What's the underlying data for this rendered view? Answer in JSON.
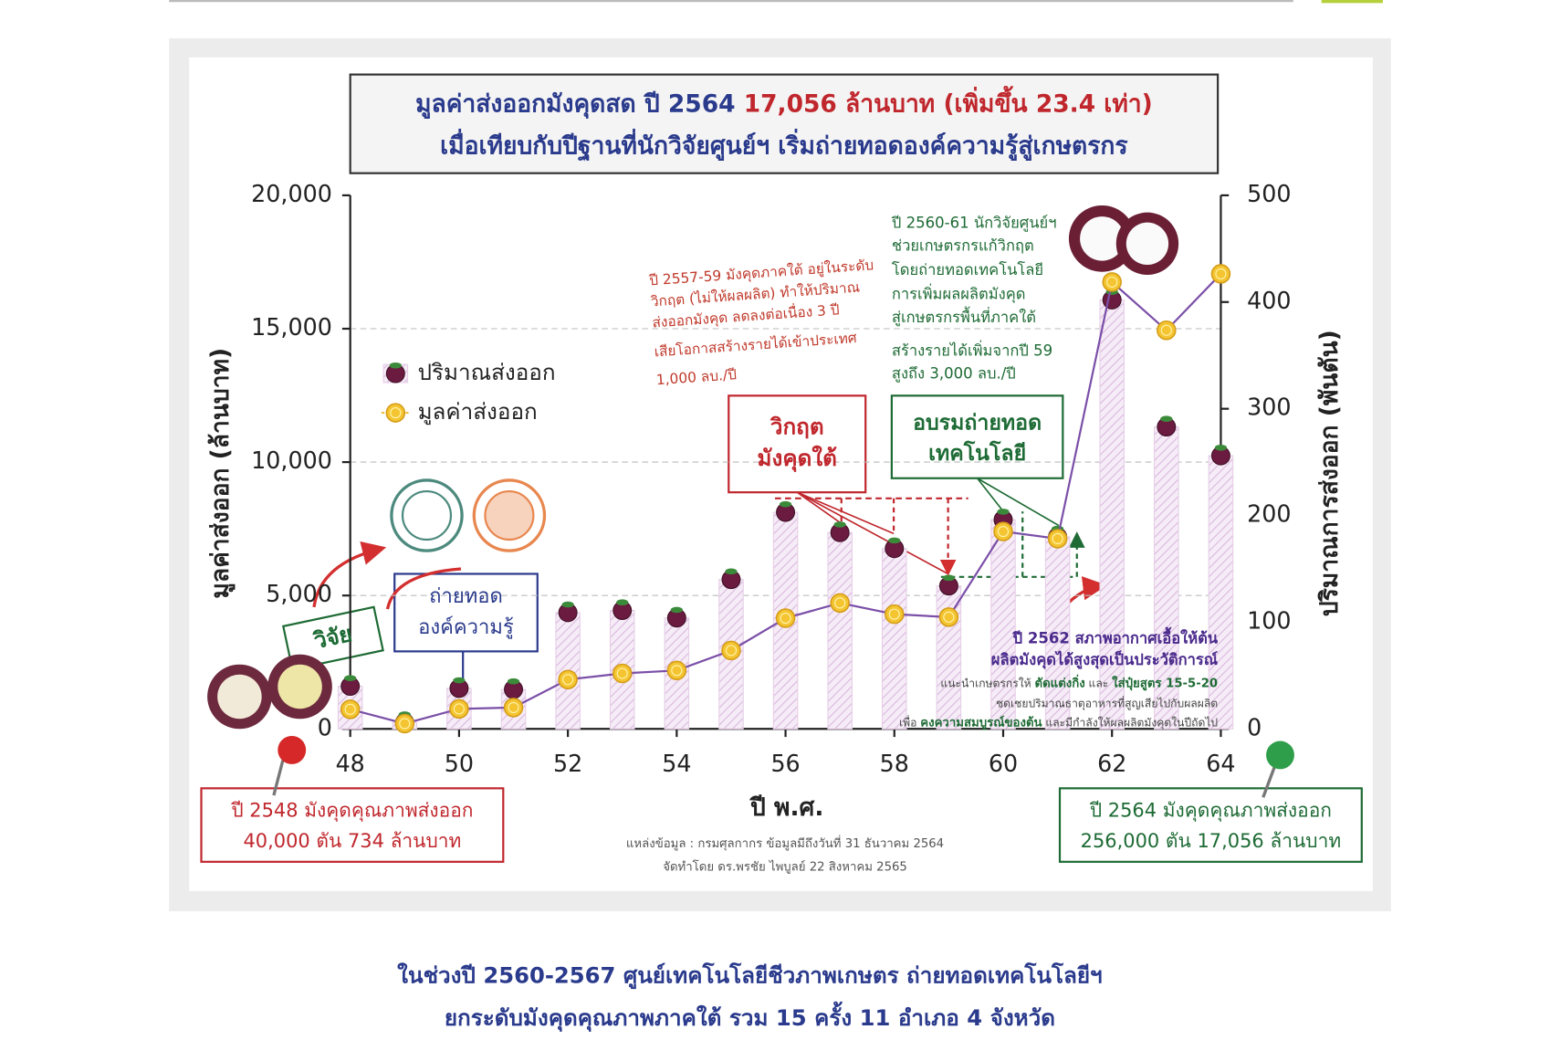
{
  "chart_data": {
    "type": "combo",
    "title": {
      "line1": [
        "มูลค่าส่งออกมังคุดสด ปี 2564 ",
        "17,056 ล้านบาท (เพิ่มขึ้น 23.4 เท่า)"
      ],
      "line2": "เมื่อเทียบกับปีฐานที่นักวิจัยศูนย์ฯ เริ่มถ่ายทอดองค์ความรู้สู่เกษตรกร"
    },
    "xlabel": "ปี พ.ศ.",
    "ylabel": "มูลค่าส่งออก (ล้านบาท)",
    "y2label": "ปริมาณการส่งออก (พันตัน)",
    "x": [
      48,
      49,
      50,
      51,
      52,
      53,
      54,
      55,
      56,
      57,
      58,
      59,
      60,
      61,
      62,
      63,
      64
    ],
    "xlim": [
      48,
      64
    ],
    "xticks": [
      48,
      50,
      52,
      54,
      56,
      58,
      60,
      62,
      64
    ],
    "ylim": [
      0,
      20000
    ],
    "yticks": [
      0,
      {
        "value": 5000,
        "label": "5,000"
      },
      {
        "value": 10000,
        "label": "10,000"
      },
      {
        "value": 15000,
        "label": "15,000"
      },
      {
        "value": 20000,
        "label": "20,000"
      }
    ],
    "y2lim": [
      0,
      500
    ],
    "y2ticks": [
      0,
      100,
      200,
      300,
      400,
      500
    ],
    "grid": true,
    "series": [
      {
        "name": "ปริมาณส่งออก",
        "type": "bar",
        "axis": "y2",
        "color": "#e6cfe8",
        "values": [
          40,
          6,
          38,
          37,
          109,
          111,
          104,
          140,
          203,
          184,
          169,
          134,
          196,
          180,
          402,
          283,
          256
        ]
      },
      {
        "name": "มูลค่าส่งออก",
        "type": "line",
        "color": "#7b4fa8",
        "values": [
          734,
          200,
          750,
          800,
          1850,
          2080,
          2190,
          2940,
          4150,
          4720,
          4300,
          4190,
          7400,
          7130,
          16750,
          14940,
          17056
        ]
      }
    ],
    "annotations": {
      "crisis_note": [
        "ปี 2557-59 มังคุดภาคใต้ อยู่ในระดับ",
        "วิกฤต (ไม่ให้ผลผลิต) ทำให้ปริมาณ",
        "ส่งออกมังคุด ลดลงต่อเนื่อง 3 ปี",
        "เสียโอกาสสร้างรายได้เข้าประเทศ",
        "1,000 ลบ./ปี"
      ],
      "tech_note": [
        "ปี 2560-61 นักวิจัยศูนย์ฯ",
        "ช่วยเกษตรกรแก้วิกฤต",
        "โดยถ่ายทอดเทคโนโลยี",
        "การเพิ่มผลผลิตมังคุด",
        "สู่เกษตรกรพื้นที่ภาคใต้",
        "สร้างรายได้เพิ่มจากปี 59",
        "สูงถึง 3,000 ลบ./ปี"
      ],
      "crisis_box": [
        "วิกฤต",
        "มังคุดใต้"
      ],
      "training_box": [
        "อบรมถ่ายทอด",
        "เทคโนโลยี"
      ],
      "research_box": [
        "วิจัย"
      ],
      "transfer_box": [
        "ถ่ายทอด",
        "องค์ความรู้"
      ],
      "record_note": [
        "ปี 2562 สภาพอากาศเอื้อให้ต้น",
        "ผลิตมังคุดได้สูงสุดเป็นประวัติการณ์"
      ],
      "advice_note": [
        [
          "แนะนำเกษตรกรให้ ",
          "ตัดแต่งกิ่ง",
          " และ ",
          "ใส่ปุ๋ยสูตร 15-5-20"
        ],
        [
          "ชดเชยปริมาณธาตุอาหารที่สูญเสียไปกับผลผลิต"
        ],
        [
          "เพื่อ ",
          "คงความสมบูรณ์ของต้น",
          " และมีกำลังให้ผลผลิตมังคุดในปีถัดไป"
        ]
      ],
      "start_box": [
        "ปี 2548 มังคุดคุณภาพส่งออก",
        "40,000 ตัน 734 ล้านบาท"
      ],
      "end_box": [
        "ปี 2564 มังคุดคุณภาพส่งออก",
        "256,000 ตัน 17,056 ล้านบาท"
      ],
      "source": [
        "แหล่งข้อมูล : กรมศุลกากร ข้อมูลมีถึงวันที่ 31 ธันวาคม 2564",
        "จัดทำโดย ดร.พรชัย ไพบูลย์ 22 สิงหาคม 2565"
      ]
    }
  },
  "caption": [
    "ในช่วงปี 2560-2567 ศูนย์เทคโนโลยีชีวภาพเกษตร ถ่ายทอดเทคโนโลยีฯ",
    "ยกระดับมังคุดคุณภาพภาคใต้ รวม 15 ครั้ง 11 อำเภอ 4 จังหวัด"
  ]
}
